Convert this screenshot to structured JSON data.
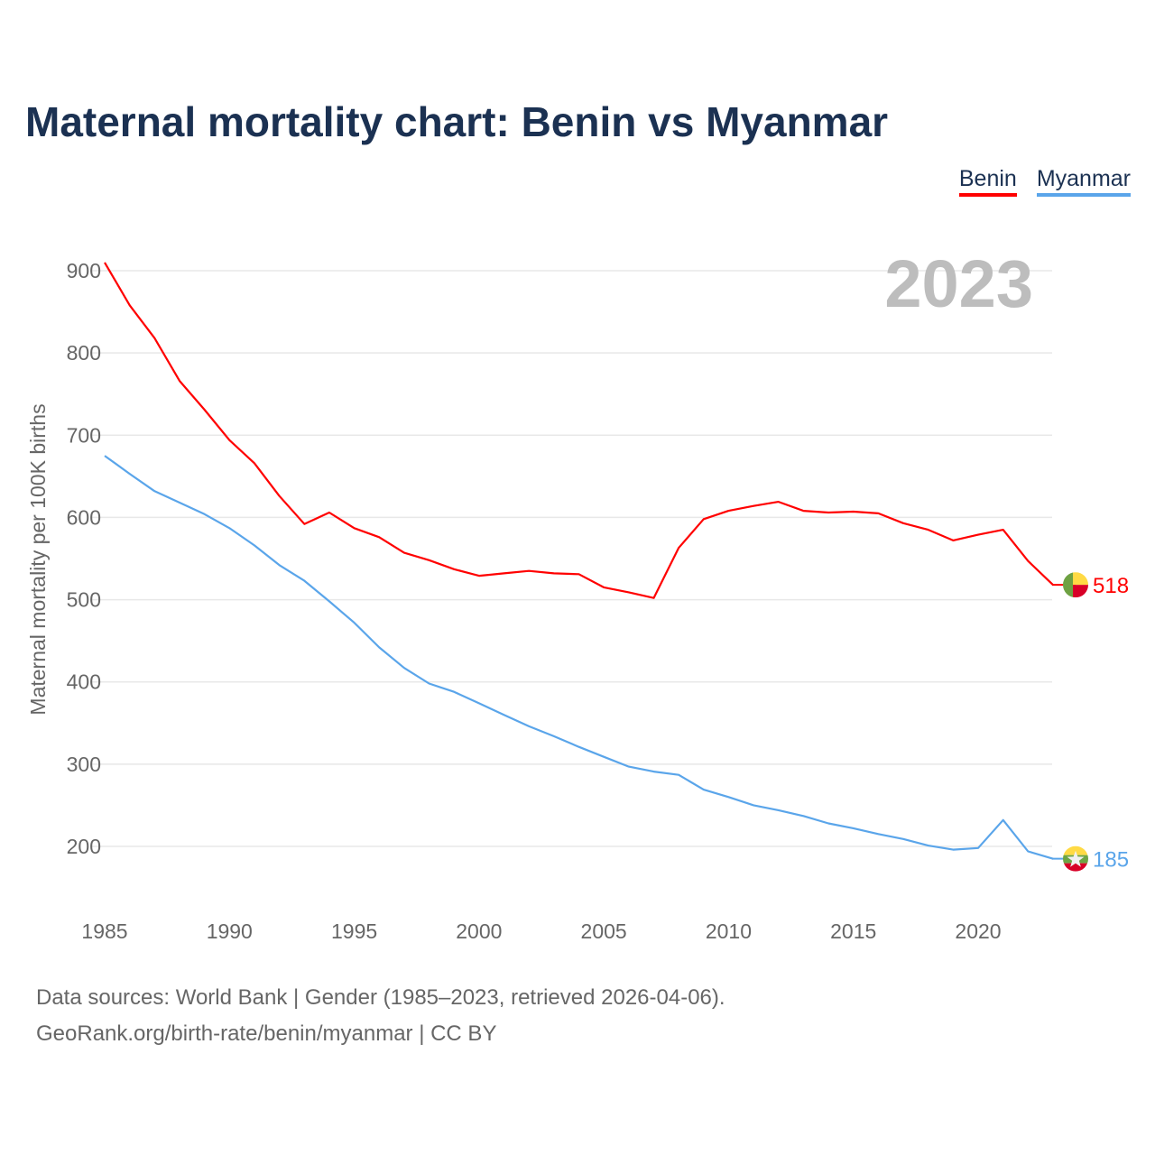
{
  "chart_data": {
    "type": "line",
    "title": "Maternal mortality chart: Benin vs Myanmar",
    "ylabel": "Maternal mortality per 100K births",
    "xlabel": "",
    "year_label": "2023",
    "ylim": [
      150,
      920
    ],
    "xlim": [
      1985,
      2023
    ],
    "yticks": [
      200,
      300,
      400,
      500,
      600,
      700,
      800,
      900
    ],
    "xticks": [
      1985,
      1990,
      1995,
      2000,
      2005,
      2010,
      2015,
      2020
    ],
    "grid": true,
    "legend_position": "top-right",
    "x": [
      1985,
      1986,
      1987,
      1988,
      1989,
      1990,
      1991,
      1992,
      1993,
      1994,
      1995,
      1996,
      1997,
      1998,
      1999,
      2000,
      2001,
      2002,
      2003,
      2004,
      2005,
      2006,
      2007,
      2008,
      2009,
      2010,
      2011,
      2012,
      2013,
      2014,
      2015,
      2016,
      2017,
      2018,
      2019,
      2020,
      2021,
      2022,
      2023
    ],
    "series": [
      {
        "name": "Benin",
        "color": "#ff0000",
        "end_label": "518",
        "values": [
          910,
          858,
          818,
          766,
          731,
          694,
          666,
          626,
          592,
          606,
          587,
          576,
          557,
          548,
          537,
          529,
          532,
          535,
          532,
          531,
          515,
          509,
          502,
          563,
          598,
          608,
          614,
          619,
          608,
          606,
          607,
          605,
          593,
          585,
          572,
          579,
          585,
          547,
          518
        ]
      },
      {
        "name": "Myanmar",
        "color": "#5aa5ea",
        "end_label": "185",
        "values": [
          675,
          653,
          632,
          618,
          604,
          587,
          566,
          542,
          523,
          498,
          472,
          442,
          417,
          398,
          388,
          374,
          360,
          346,
          334,
          321,
          309,
          297,
          291,
          287,
          269,
          260,
          250,
          244,
          237,
          228,
          222,
          215,
          209,
          201,
          196,
          198,
          232,
          194,
          185
        ]
      }
    ]
  },
  "footer": {
    "line1": "Data sources: World Bank | Gender (1985–2023, retrieved 2026-04-06).",
    "line2": "GeoRank.org/birth-rate/benin/myanmar | CC BY"
  }
}
